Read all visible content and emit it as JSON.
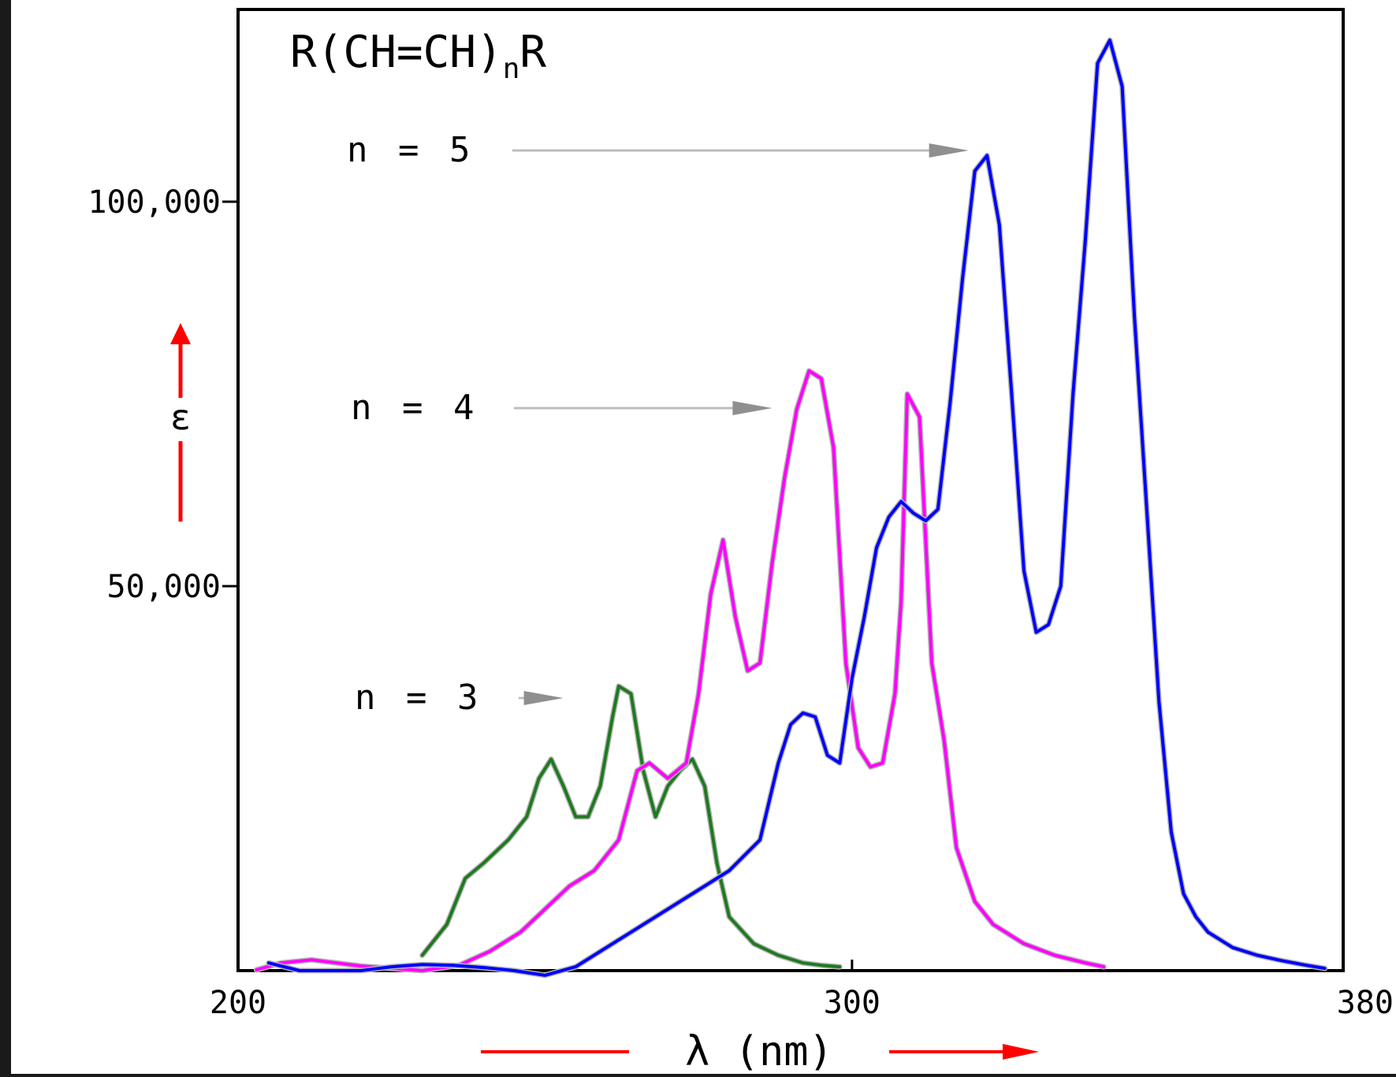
{
  "chart_data": {
    "type": "line",
    "title": "R(CH=CH)",
    "title_subscript": "n",
    "title_suffix": "R",
    "xlabel": "λ (nm)",
    "ylabel": "ε",
    "xlim": [
      200,
      380
    ],
    "ylim": [
      0,
      125000
    ],
    "x_ticks": [
      200,
      300,
      380
    ],
    "x_tick_labels": [
      "200",
      "300",
      "380"
    ],
    "y_ticks": [
      50000,
      100000
    ],
    "y_tick_labels": [
      "50,000",
      "100,000"
    ],
    "grid": false,
    "annotations": [
      {
        "text": "n = 5",
        "points_to": [
          320,
          104000
        ]
      },
      {
        "text": "n = 4",
        "points_to": [
          288,
          70000
        ]
      },
      {
        "text": "n = 3",
        "points_to": [
          254,
          32500
        ]
      }
    ],
    "series": [
      {
        "name": "n = 3",
        "color": "#1e7a1e",
        "x": [
          230,
          234,
          237,
          240,
          244,
          247,
          249,
          251,
          253,
          255,
          257,
          259,
          261,
          262,
          264,
          266,
          268,
          270,
          272,
          274,
          276,
          278,
          280,
          284,
          288,
          292,
          295,
          298
        ],
        "y": [
          2000,
          6000,
          12000,
          14000,
          17000,
          20000,
          25000,
          27500,
          24000,
          20000,
          20000,
          24000,
          33000,
          37000,
          36000,
          26000,
          20000,
          24000,
          26000,
          27500,
          24000,
          14000,
          7000,
          3500,
          2000,
          1000,
          700,
          500
        ]
      },
      {
        "name": "n = 4",
        "color": "#ff00ff",
        "x": [
          203,
          207,
          212,
          216,
          220,
          225,
          230,
          236,
          241,
          246,
          250,
          254,
          258,
          262,
          265,
          267,
          270,
          273,
          275,
          277,
          279,
          281,
          283,
          285,
          287,
          289,
          291,
          293,
          295,
          297,
          299,
          301,
          303,
          305,
          307,
          308,
          309,
          311,
          313,
          315,
          317,
          320,
          323,
          328,
          333,
          338,
          341
        ],
        "y": [
          100,
          1000,
          1400,
          1000,
          600,
          300,
          0,
          700,
          2500,
          5000,
          8000,
          11000,
          13000,
          17000,
          26000,
          27000,
          25000,
          27000,
          36000,
          49000,
          56000,
          46000,
          39000,
          40000,
          53000,
          64000,
          73000,
          78000,
          77000,
          68000,
          40000,
          29000,
          26500,
          27000,
          36000,
          48000,
          75000,
          72000,
          40000,
          30000,
          16000,
          9000,
          6000,
          3500,
          2000,
          1000,
          500
        ]
      },
      {
        "name": "n = 5",
        "color": "#0000ff",
        "x": [
          205,
          210,
          215,
          220,
          225,
          230,
          235,
          240,
          245,
          250,
          255,
          260,
          265,
          270,
          275,
          280,
          285,
          288,
          290,
          292,
          294,
          296,
          298,
          300,
          302,
          304,
          306,
          308,
          310,
          312,
          314,
          316,
          318,
          320,
          322,
          324,
          326,
          328,
          330,
          332,
          334,
          336,
          338,
          340,
          342,
          344,
          346,
          348,
          350,
          352,
          354,
          356,
          358,
          362,
          366,
          370,
          374,
          377
        ],
        "y": [
          1000,
          0,
          0,
          0,
          500,
          800,
          700,
          400,
          0,
          -600,
          500,
          3000,
          5500,
          8000,
          10500,
          13000,
          17000,
          27000,
          32000,
          33500,
          33000,
          28000,
          27000,
          38000,
          46000,
          55000,
          59000,
          61000,
          59500,
          58500,
          60000,
          74000,
          90000,
          104000,
          106000,
          97000,
          75000,
          52000,
          44000,
          45000,
          50000,
          75000,
          95000,
          118000,
          121000,
          115000,
          85000,
          60000,
          35000,
          18000,
          10000,
          7000,
          5000,
          3000,
          2000,
          1300,
          700,
          300
        ]
      }
    ]
  }
}
